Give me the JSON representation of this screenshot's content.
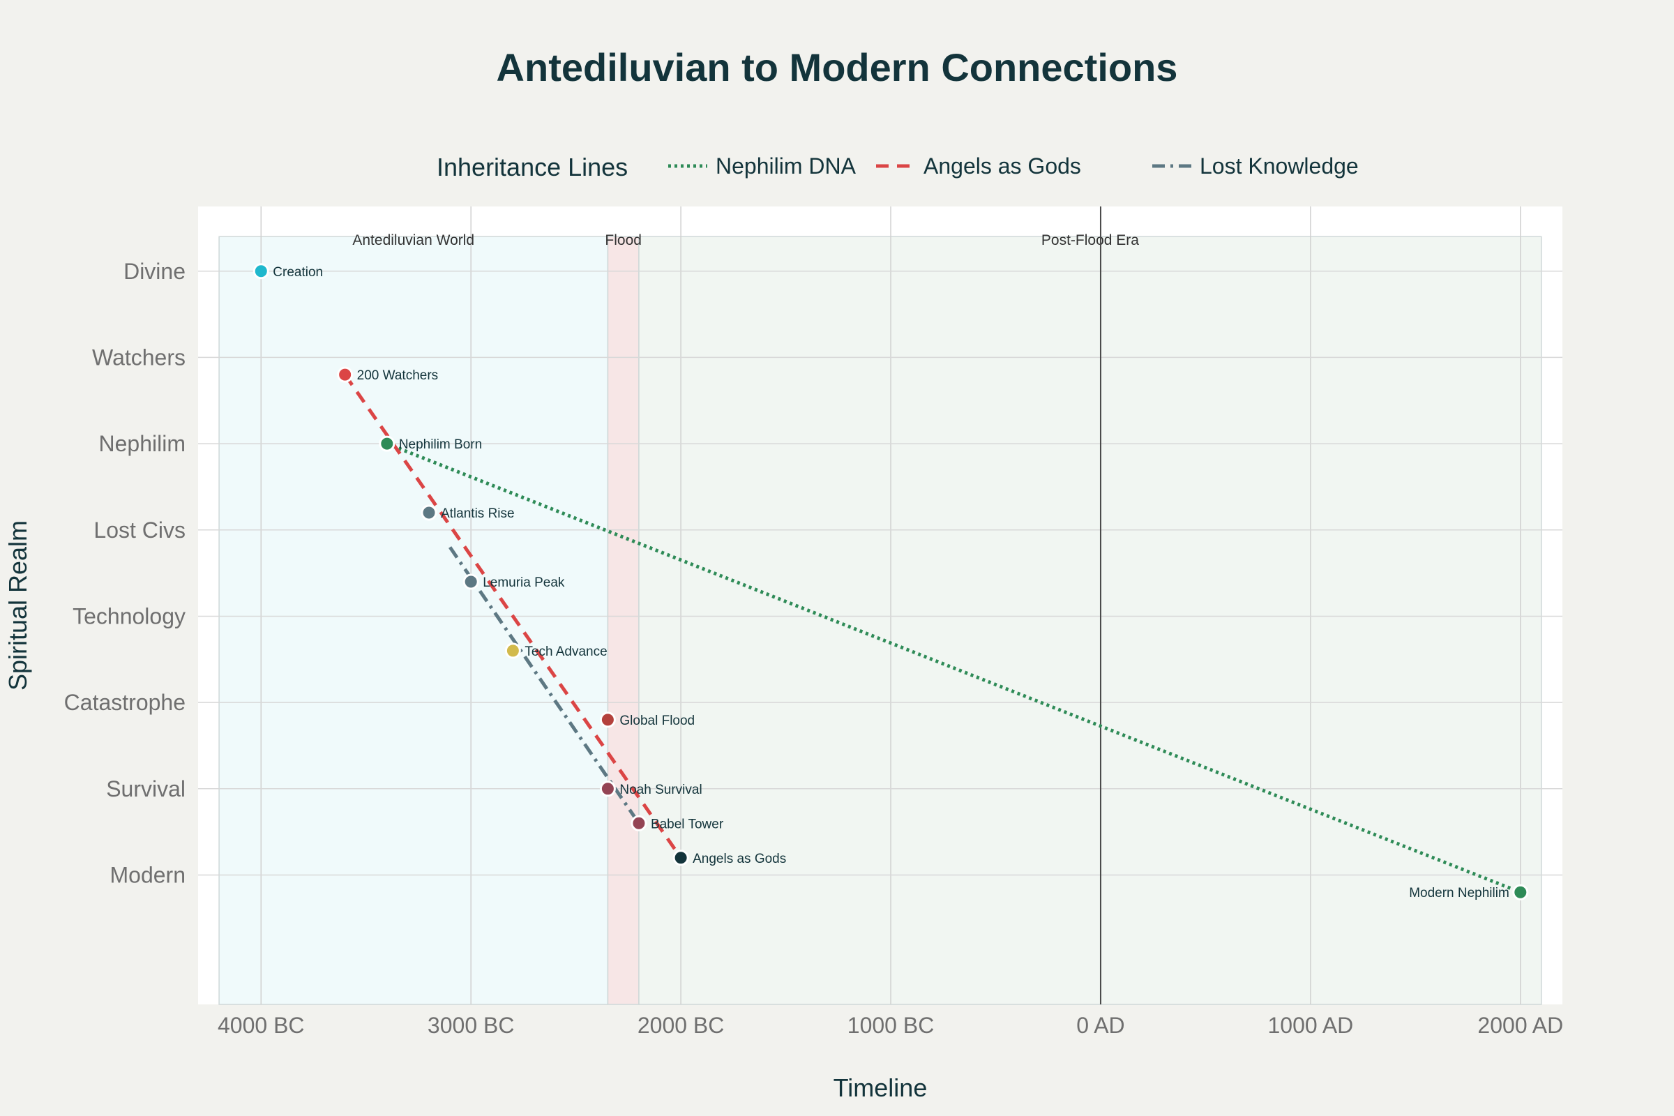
{
  "chart_data": {
    "type": "scatter",
    "title": "Antediluvian to Modern Connections",
    "xlabel": "Timeline",
    "ylabel": "Spiritual Realm",
    "x_ticks": [
      {
        "value": -4000,
        "label": "4000 BC"
      },
      {
        "value": -3000,
        "label": "3000 BC"
      },
      {
        "value": -2000,
        "label": "2000 BC"
      },
      {
        "value": -1000,
        "label": "1000 BC"
      },
      {
        "value": 0,
        "label": "0 AD"
      },
      {
        "value": 1000,
        "label": "1000 AD"
      },
      {
        "value": 2000,
        "label": "2000 AD"
      }
    ],
    "xlim": [
      -4300,
      2200
    ],
    "y_categories": [
      "Divine",
      "Watchers",
      "Nephilim",
      "Lost Civs",
      "Technology",
      "Catastrophe",
      "Survival",
      "Modern"
    ],
    "ylim": [
      8.5,
      -0.75
    ],
    "grid": true,
    "regions": [
      {
        "label": "Antediluvian World",
        "x_start": -4200,
        "x_end": -2348,
        "color": "#e6f7f9"
      },
      {
        "label": "Flood",
        "x_start": -2348,
        "x_end": -2200,
        "color": "#f2d6d6"
      },
      {
        "label": "Post-Flood Era",
        "x_start": -2200,
        "x_end": 2100,
        "color": "#e8f0ea"
      }
    ],
    "vertical_line_x": 0,
    "legend": {
      "title": "Inheritance Lines",
      "position": "top-center",
      "entries": [
        "Nephilim DNA",
        "Angels as Gods",
        "Lost Knowledge"
      ]
    },
    "points": [
      {
        "label": "Creation",
        "x": -4000,
        "y": 0,
        "color": "#1fb8cd"
      },
      {
        "label": "200 Watchers",
        "x": -3600,
        "y": 1.2,
        "color": "#db4545"
      },
      {
        "label": "Nephilim Born",
        "x": -3400,
        "y": 2,
        "color": "#2e8b57"
      },
      {
        "label": "Atlantis Rise",
        "x": -3200,
        "y": 2.8,
        "color": "#5d7883"
      },
      {
        "label": "Lemuria Peak",
        "x": -3000,
        "y": 3.6,
        "color": "#5d7883"
      },
      {
        "label": "Tech Advance",
        "x": -2800,
        "y": 4.4,
        "color": "#d2ba4c"
      },
      {
        "label": "Global Flood",
        "x": -2348,
        "y": 5.2,
        "color": "#b4413c"
      },
      {
        "label": "Noah Survival",
        "x": -2348,
        "y": 6,
        "color": "#944454"
      },
      {
        "label": "Babel Tower",
        "x": -2200,
        "y": 6.4,
        "color": "#944454"
      },
      {
        "label": "Angels as Gods",
        "x": -2000,
        "y": 6.8,
        "color": "#13343b"
      },
      {
        "label": "Modern Nephilim",
        "x": 2000,
        "y": 7.2,
        "color": "#2e8b57"
      }
    ],
    "series": [
      {
        "name": "Nephilim DNA",
        "color": "#2e8b57",
        "dash": "dotted",
        "x": [
          -3400,
          2000
        ],
        "y": [
          2,
          7.2
        ]
      },
      {
        "name": "Angels as Gods",
        "color": "#db4545",
        "dash": "dashed",
        "x": [
          -3600,
          -2000
        ],
        "y": [
          1.2,
          6.8
        ]
      },
      {
        "name": "Lost Knowledge",
        "color": "#5d7883",
        "dash": "dashdot",
        "x": [
          -3100,
          -2200
        ],
        "y": [
          3.2,
          6.4
        ]
      }
    ]
  }
}
